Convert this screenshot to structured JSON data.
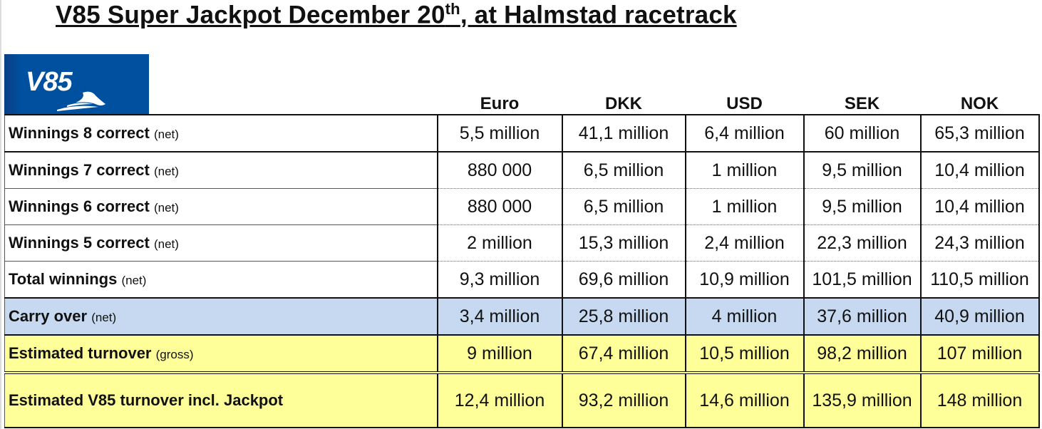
{
  "title": {
    "main": "V85 Super Jackpot December 20",
    "sup": "th",
    "rest": ", at Halmstad racetrack"
  },
  "logo": {
    "text": "V85"
  },
  "columns": [
    "Euro",
    "DKK",
    "USD",
    "SEK",
    "NOK"
  ],
  "rows": [
    {
      "label": "Winnings 8 correct",
      "note": "(net)",
      "values": [
        "5,5 million",
        "41,1 million",
        "6,4 million",
        "60 million",
        "65,3 million"
      ]
    },
    {
      "label": "Winnings 7 correct",
      "note": "(net)",
      "values": [
        "880 000",
        "6,5 million",
        "1 million",
        "9,5 million",
        "10,4 million"
      ]
    },
    {
      "label": "Winnings 6 correct",
      "note": "(net)",
      "values": [
        "880 000",
        "6,5 million",
        "1 million",
        "9,5 million",
        "10,4 million"
      ]
    },
    {
      "label": "Winnings 5 correct",
      "note": "(net)",
      "values": [
        "2 million",
        "15,3 million",
        "2,4 million",
        "22,3 million",
        "24,3 million"
      ]
    },
    {
      "label": "Total winnings",
      "note": "(net)",
      "values": [
        "9,3 million",
        "69,6 million",
        "10,9 million",
        "101,5 million",
        "110,5 million"
      ]
    },
    {
      "label": "Carry over",
      "note": "(net)",
      "values": [
        "3,4 million",
        "25,8 million",
        "4 million",
        "37,6 million",
        "40,9 million"
      ]
    },
    {
      "label": "Estimated turnover",
      "note": "(gross)",
      "values": [
        "9 million",
        "67,4 million",
        "10,5 million",
        "98,2 million",
        "107 million"
      ]
    },
    {
      "label": "Estimated V85 turnover incl. Jackpot",
      "note": "",
      "values": [
        "12,4 million",
        "93,2 million",
        "14,6 million",
        "135,9 million",
        "148 million"
      ]
    }
  ],
  "colors": {
    "carry_over": "#c6d9f0",
    "turnover": "#ffff99",
    "logo_bg": "#0050a0"
  }
}
